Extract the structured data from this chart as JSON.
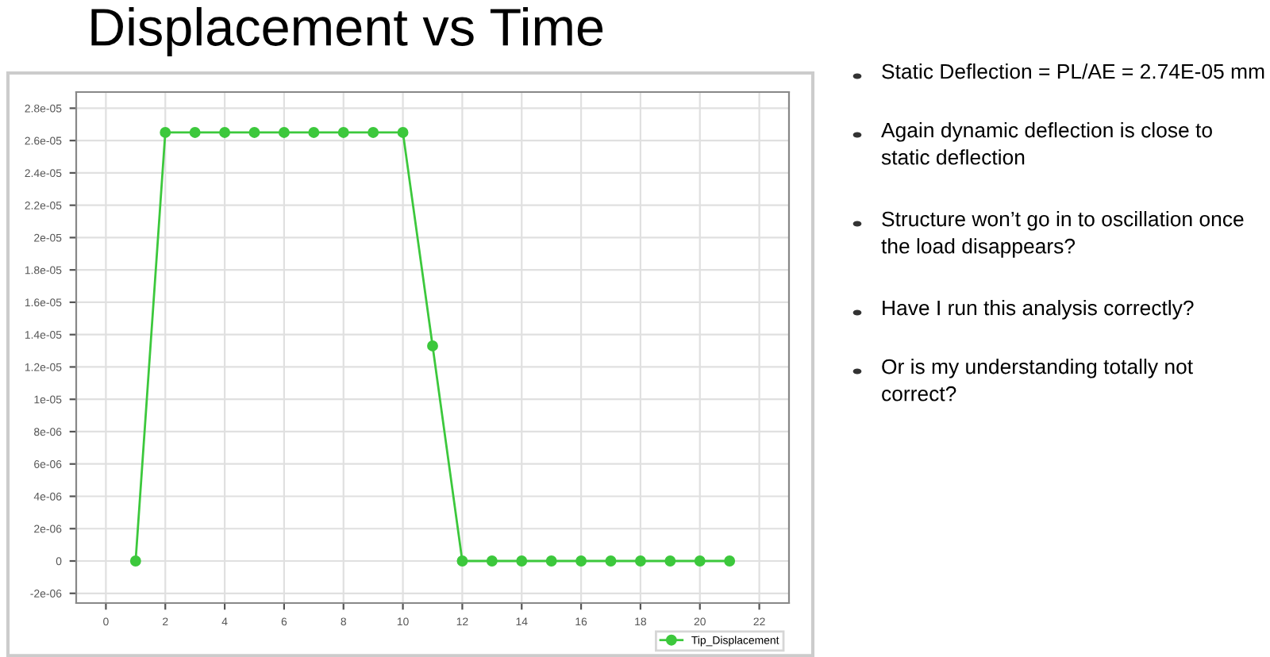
{
  "chart_data": {
    "type": "line",
    "title": "Displacement vs Time",
    "x": [
      1,
      2,
      3,
      4,
      5,
      6,
      7,
      8,
      9,
      10,
      11,
      12,
      13,
      14,
      15,
      16,
      17,
      18,
      19,
      20,
      21
    ],
    "series": [
      {
        "name": "Tip_Displacement",
        "color": "#3cc83c",
        "values": [
          0,
          2.65e-05,
          2.65e-05,
          2.65e-05,
          2.65e-05,
          2.65e-05,
          2.65e-05,
          2.65e-05,
          2.65e-05,
          2.65e-05,
          1.33e-05,
          0,
          0,
          0,
          0,
          0,
          0,
          0,
          0,
          0,
          0
        ]
      }
    ],
    "xlim": [
      -1,
      23
    ],
    "xticks": [
      0,
      2,
      4,
      6,
      8,
      10,
      12,
      14,
      16,
      18,
      20,
      22
    ],
    "ylim": [
      -2.6e-06,
      2.9e-05
    ],
    "yticks": [
      {
        "value": -2e-06,
        "label": "-2e-06"
      },
      0,
      {
        "value": 2e-06,
        "label": "2e-06"
      },
      {
        "value": 4e-06,
        "label": "4e-06"
      },
      {
        "value": 6e-06,
        "label": "6e-06"
      },
      {
        "value": 8e-06,
        "label": "8e-06"
      },
      {
        "value": 1e-05,
        "label": "1e-05"
      },
      {
        "value": 1.2e-05,
        "label": "1.2e-05"
      },
      {
        "value": 1.4e-05,
        "label": "1.4e-05"
      },
      {
        "value": 1.6e-05,
        "label": "1.6e-05"
      },
      {
        "value": 1.8e-05,
        "label": "1.8e-05"
      },
      {
        "value": 2e-05,
        "label": "2e-05"
      },
      {
        "value": 2.2e-05,
        "label": "2.2e-05"
      },
      {
        "value": 2.4e-05,
        "label": "2.4e-05"
      },
      {
        "value": 2.6e-05,
        "label": "2.6e-05"
      },
      {
        "value": 2.8e-05,
        "label": "2.8e-05"
      }
    ],
    "grid": true,
    "legend": "bottom right",
    "marker": "circle",
    "line_style": "solid",
    "annotations": [
      "Static Deflection = PL/AE = 2.74E-05 mm",
      "Again dynamic deflection is close to\nstatic deflection",
      "Structure won’t go in to oscillation once\nthe load disappears?",
      "Have I run this analysis correctly?",
      "Or is my understanding totally not\ncorrect?"
    ]
  }
}
